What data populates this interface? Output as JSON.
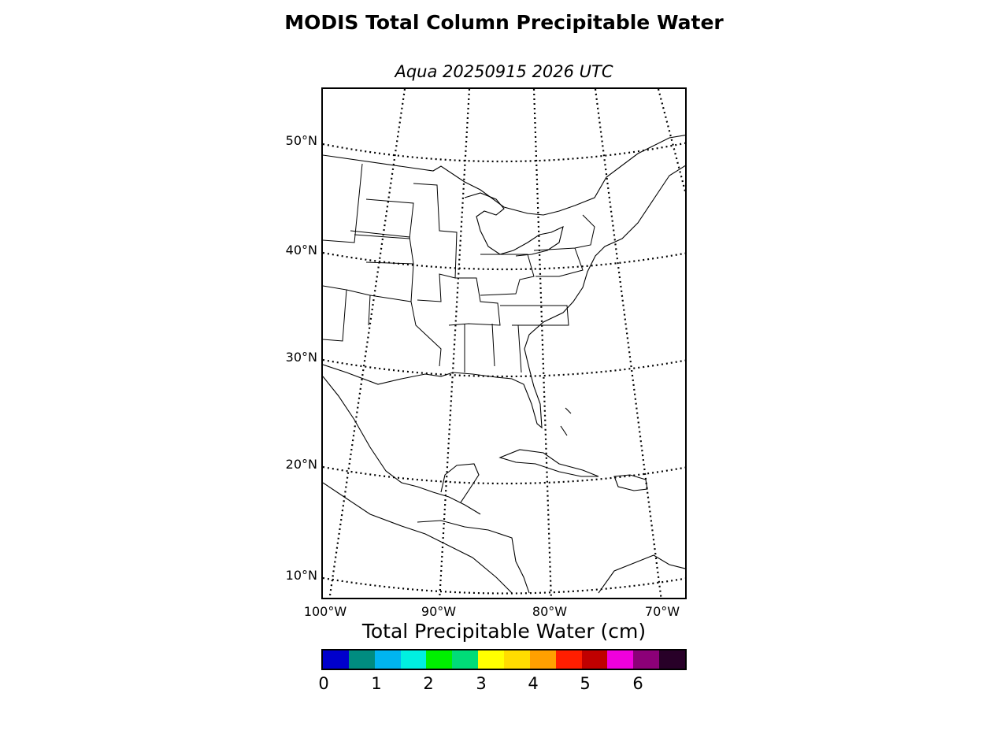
{
  "title": "MODIS Total Column Precipitable Water",
  "subtitle": "Aqua 20250915 2026 UTC",
  "map": {
    "lat_labels": [
      "50°N",
      "40°N",
      "30°N",
      "20°N",
      "10°N"
    ],
    "lon_labels": [
      "100°W",
      "90°W",
      "80°W",
      "70°W"
    ],
    "lat_range": [
      8,
      55
    ],
    "lon_range": [
      -100,
      -68
    ],
    "graticule_style": "dotted",
    "projection": "conic"
  },
  "colorbar": {
    "title": "Total Precipitable Water (cm)",
    "ticks": [
      "0",
      "1",
      "2",
      "3",
      "4",
      "5",
      "6"
    ],
    "range": [
      0,
      7
    ],
    "colors": [
      "#0000cc",
      "#008c80",
      "#00b4f0",
      "#00f0e0",
      "#00f000",
      "#00dc78",
      "#ffff00",
      "#ffdc00",
      "#ffa000",
      "#ff1e00",
      "#c00000",
      "#f000dc",
      "#8c0078",
      "#280028"
    ]
  }
}
